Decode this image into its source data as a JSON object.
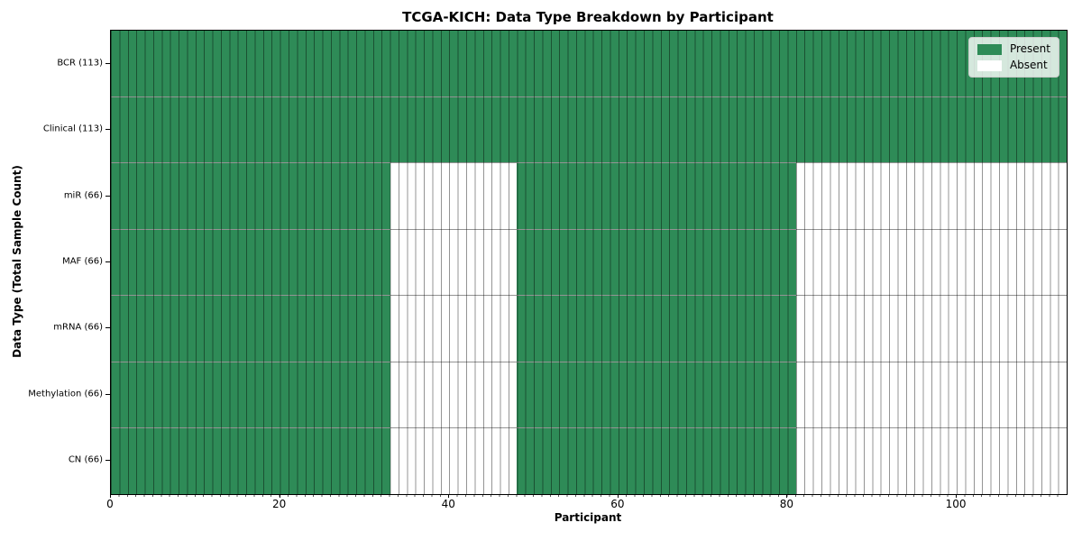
{
  "chart_data": {
    "type": "heatmap",
    "title": "TCGA-KICH: Data Type Breakdown by Participant",
    "xlabel": "Participant",
    "ylabel": "Data Type (Total Sample Count)",
    "n_participants": 113,
    "x_ticks": [
      {
        "value": 0,
        "label": "0"
      },
      {
        "value": 20,
        "label": "20"
      },
      {
        "value": 40,
        "label": "40"
      },
      {
        "value": 60,
        "label": "60"
      },
      {
        "value": 80,
        "label": "80"
      },
      {
        "value": 100,
        "label": "100"
      }
    ],
    "rows": [
      {
        "name": "BCR",
        "label": "BCR (113)",
        "present_count": 113,
        "present_ranges": [
          [
            0,
            113
          ]
        ]
      },
      {
        "name": "Clinical",
        "label": "Clinical (113)",
        "present_count": 113,
        "present_ranges": [
          [
            0,
            113
          ]
        ]
      },
      {
        "name": "miR",
        "label": "miR (66)",
        "present_count": 66,
        "present_ranges": [
          [
            0,
            33
          ],
          [
            48,
            81
          ]
        ]
      },
      {
        "name": "MAF",
        "label": "MAF (66)",
        "present_count": 66,
        "present_ranges": [
          [
            0,
            33
          ],
          [
            48,
            81
          ]
        ]
      },
      {
        "name": "mRNA",
        "label": "mRNA (66)",
        "present_count": 66,
        "present_ranges": [
          [
            0,
            33
          ],
          [
            48,
            81
          ]
        ]
      },
      {
        "name": "Methylation",
        "label": "Methylation (66)",
        "present_count": 66,
        "present_ranges": [
          [
            0,
            33
          ],
          [
            48,
            81
          ]
        ]
      },
      {
        "name": "CN",
        "label": "CN (66)",
        "present_count": 66,
        "present_ranges": [
          [
            0,
            33
          ],
          [
            48,
            81
          ]
        ]
      }
    ],
    "legend": [
      {
        "label": "Present",
        "color": "#2E8B57"
      },
      {
        "label": "Absent",
        "color": "#FFFFFF"
      }
    ],
    "legend_position": "top-right",
    "grid": "on",
    "colors": {
      "present": "#2E8B57",
      "absent": "#FFFFFF",
      "grid_line": "rgba(0,0,0,0.42)",
      "spine": "#000000",
      "background": "#FFFFFF"
    }
  }
}
